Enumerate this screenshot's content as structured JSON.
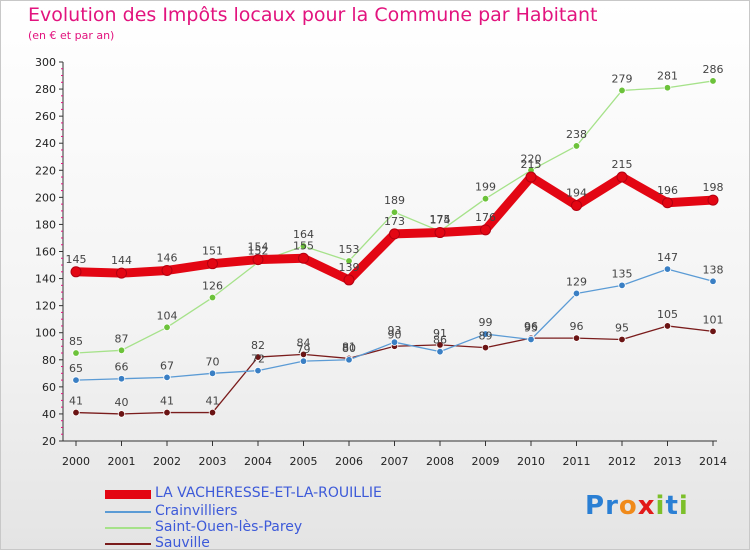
{
  "header": {
    "title": "Evolution des Impôts locaux pour la Commune par Habitant",
    "subtitle": "(en € et par an)"
  },
  "logo": {
    "text": "Proxiti",
    "letters": [
      {
        "ch": "P",
        "color": "#2a7fd4"
      },
      {
        "ch": "r",
        "color": "#2a7fd4"
      },
      {
        "ch": "o",
        "color": "#f08a1a"
      },
      {
        "ch": "x",
        "color": "#e21a1a"
      },
      {
        "ch": "i",
        "color": "#7cbf2a"
      },
      {
        "ch": "t",
        "color": "#2a7fd4"
      },
      {
        "ch": "i",
        "color": "#7cbf2a"
      }
    ]
  },
  "chart_data": {
    "type": "line",
    "title": "Evolution des Impôts locaux pour la Commune par Habitant",
    "subtitle": "(en € et par an)",
    "x": [
      "2000",
      "2001",
      "2002",
      "2003",
      "2004",
      "2005",
      "2006",
      "2007",
      "2008",
      "2009",
      "2010",
      "2011",
      "2012",
      "2013",
      "2014"
    ],
    "yticks": [
      "20",
      "40",
      "60",
      "80",
      "100",
      "120",
      "140",
      "160",
      "180",
      "200",
      "220",
      "240",
      "260",
      "280",
      "300"
    ],
    "ylim": [
      20,
      300
    ],
    "grid": false,
    "legend_position": "bottom-left",
    "series": [
      {
        "name": "LA VACHERESSE-ET-LA-ROUILLIE",
        "color": "#e30613",
        "pointColor": "#e30613",
        "values": [
          145,
          144,
          146,
          151,
          154,
          155,
          139,
          173,
          174,
          176,
          215,
          194,
          215,
          196,
          198
        ],
        "labels": [
          "145",
          "144",
          "146",
          "151",
          "154",
          "155",
          "139",
          "173",
          "174",
          "176",
          "215",
          "194",
          "215",
          "196",
          "198"
        ]
      },
      {
        "name": "Crainvilliers",
        "color": "#5b9bd5",
        "pointColor": "#3a7fc4",
        "values": [
          65,
          66,
          67,
          70,
          72,
          79,
          80,
          93,
          86,
          99,
          95,
          129,
          135,
          147,
          138
        ],
        "labels": [
          "65",
          "66",
          "67",
          "70",
          "72",
          "79",
          "80",
          "93",
          "86",
          "99",
          "95",
          "129",
          "135",
          "147",
          "138"
        ]
      },
      {
        "name": "Saint-Ouen-lès-Parey",
        "color": "#a6e28a",
        "pointColor": "#6cc23a",
        "values": [
          85,
          87,
          104,
          126,
          152,
          164,
          153,
          189,
          175,
          199,
          220,
          238,
          279,
          281,
          286
        ],
        "labels": [
          "85",
          "87",
          "104",
          "126",
          "152",
          "164",
          "153",
          "189",
          "175",
          "199",
          "220",
          "238",
          "279",
          "281",
          "286"
        ]
      },
      {
        "name": "Sauville",
        "color": "#7a1c1c",
        "pointColor": "#6b1414",
        "values": [
          41,
          40,
          41,
          41,
          82,
          84,
          81,
          90,
          91,
          89,
          96,
          96,
          95,
          105,
          101
        ],
        "labels": [
          "41",
          "40",
          "41",
          "41",
          "82",
          "84",
          "81",
          "90",
          "91",
          "89",
          "96",
          "96",
          "95",
          "105",
          "101"
        ]
      }
    ]
  }
}
